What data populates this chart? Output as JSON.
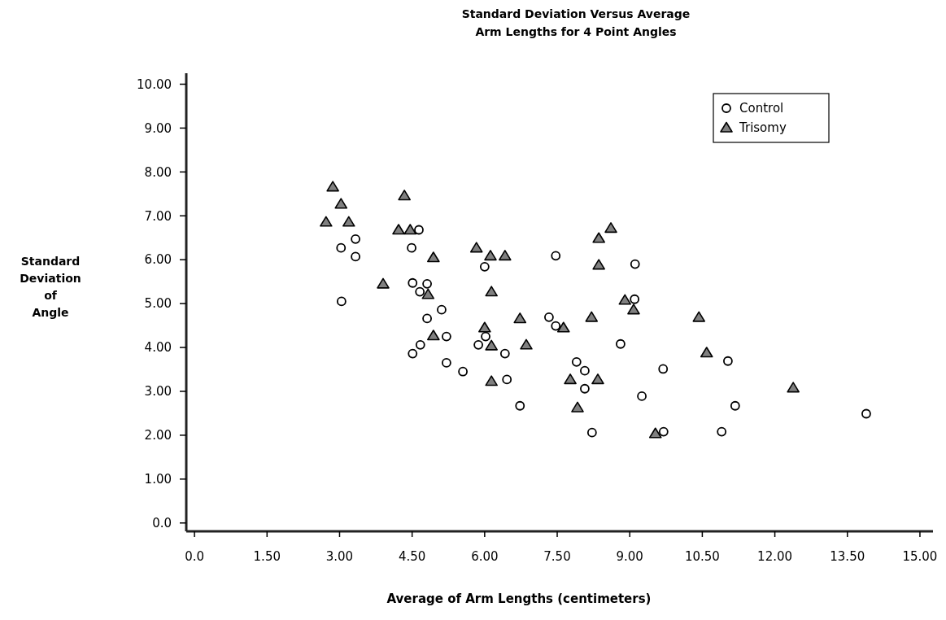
{
  "chart_data": {
    "type": "scatter",
    "title": "Standard Deviation Versus Average\nArm Lengths for 4 Point Angles",
    "xlabel": "Average of Arm Lengths (centimeters)",
    "ylabel": "Standard\nDeviation\nof\nAngle",
    "xlim": [
      -0.17,
      15.27
    ],
    "ylim": [
      -0.19,
      10.25
    ],
    "xticks": [
      {
        "value": 0,
        "label": "0.0"
      },
      {
        "value": 1.5,
        "label": "1.50"
      },
      {
        "value": 3,
        "label": "3.00"
      },
      {
        "value": 4.5,
        "label": "4.50"
      },
      {
        "value": 6,
        "label": "6.00"
      },
      {
        "value": 7.5,
        "label": "7.50"
      },
      {
        "value": 9,
        "label": "9.00"
      },
      {
        "value": 10.5,
        "label": "10.50"
      },
      {
        "value": 12,
        "label": "12.00"
      },
      {
        "value": 13.5,
        "label": "13.50"
      },
      {
        "value": 15,
        "label": "15.00"
      }
    ],
    "yticks": [
      {
        "value": 0,
        "label": "0.0"
      },
      {
        "value": 1,
        "label": "1.00"
      },
      {
        "value": 2,
        "label": "2.00"
      },
      {
        "value": 3,
        "label": "3.00"
      },
      {
        "value": 4,
        "label": "4.00"
      },
      {
        "value": 5,
        "label": "5.00"
      },
      {
        "value": 6,
        "label": "6.00"
      },
      {
        "value": 7,
        "label": "7.00"
      },
      {
        "value": 8,
        "label": "8.00"
      },
      {
        "value": 9,
        "label": "9.00"
      },
      {
        "value": 10,
        "label": "10.00"
      }
    ],
    "legend": "top right",
    "series": [
      {
        "name": "Control",
        "color": "#ffffff",
        "marker": "circle",
        "x": [
          4.64,
          3.33,
          3.03,
          3.33,
          4.49,
          4.51,
          4.81,
          4.66,
          5.11,
          4.81,
          5.21,
          4.67,
          4.51,
          5.21,
          3.04,
          7.47,
          6.0,
          9.11,
          9.1,
          7.33,
          7.47,
          6.02,
          5.87,
          6.42,
          8.81,
          5.55,
          7.9,
          8.07,
          6.46,
          8.07,
          9.69,
          9.25,
          6.73,
          8.22,
          9.7,
          11.03,
          11.18,
          10.9,
          13.89
        ],
        "values": [
          6.68,
          6.47,
          6.27,
          6.07,
          6.27,
          5.47,
          5.45,
          5.27,
          4.86,
          4.66,
          4.25,
          4.06,
          3.86,
          3.65,
          5.05,
          6.09,
          5.84,
          5.9,
          5.1,
          4.69,
          4.49,
          4.25,
          4.06,
          3.86,
          4.08,
          3.45,
          3.67,
          3.47,
          3.27,
          3.06,
          3.51,
          2.89,
          2.67,
          2.06,
          2.08,
          3.69,
          2.67,
          2.08,
          2.49
        ]
      },
      {
        "name": "Trisomy",
        "color": "#808080",
        "marker": "triangle",
        "x": [
          2.86,
          3.03,
          2.72,
          3.19,
          4.34,
          4.22,
          4.46,
          4.94,
          3.9,
          4.83,
          4.94,
          5.83,
          6.12,
          6.42,
          8.61,
          8.36,
          8.36,
          6.14,
          8.9,
          9.08,
          6.73,
          8.21,
          6.0,
          7.63,
          6.14,
          6.86,
          6.14,
          7.77,
          8.34,
          7.92,
          9.53,
          10.43,
          10.59,
          12.38
        ],
        "values": [
          7.66,
          7.27,
          6.86,
          6.86,
          7.46,
          6.68,
          6.68,
          6.05,
          5.45,
          5.21,
          4.27,
          6.27,
          6.09,
          6.09,
          6.72,
          6.49,
          5.88,
          5.27,
          5.08,
          4.86,
          4.66,
          4.69,
          4.45,
          4.45,
          4.04,
          4.06,
          3.23,
          3.27,
          3.27,
          2.63,
          2.04,
          4.69,
          3.88,
          3.08
        ]
      }
    ]
  }
}
